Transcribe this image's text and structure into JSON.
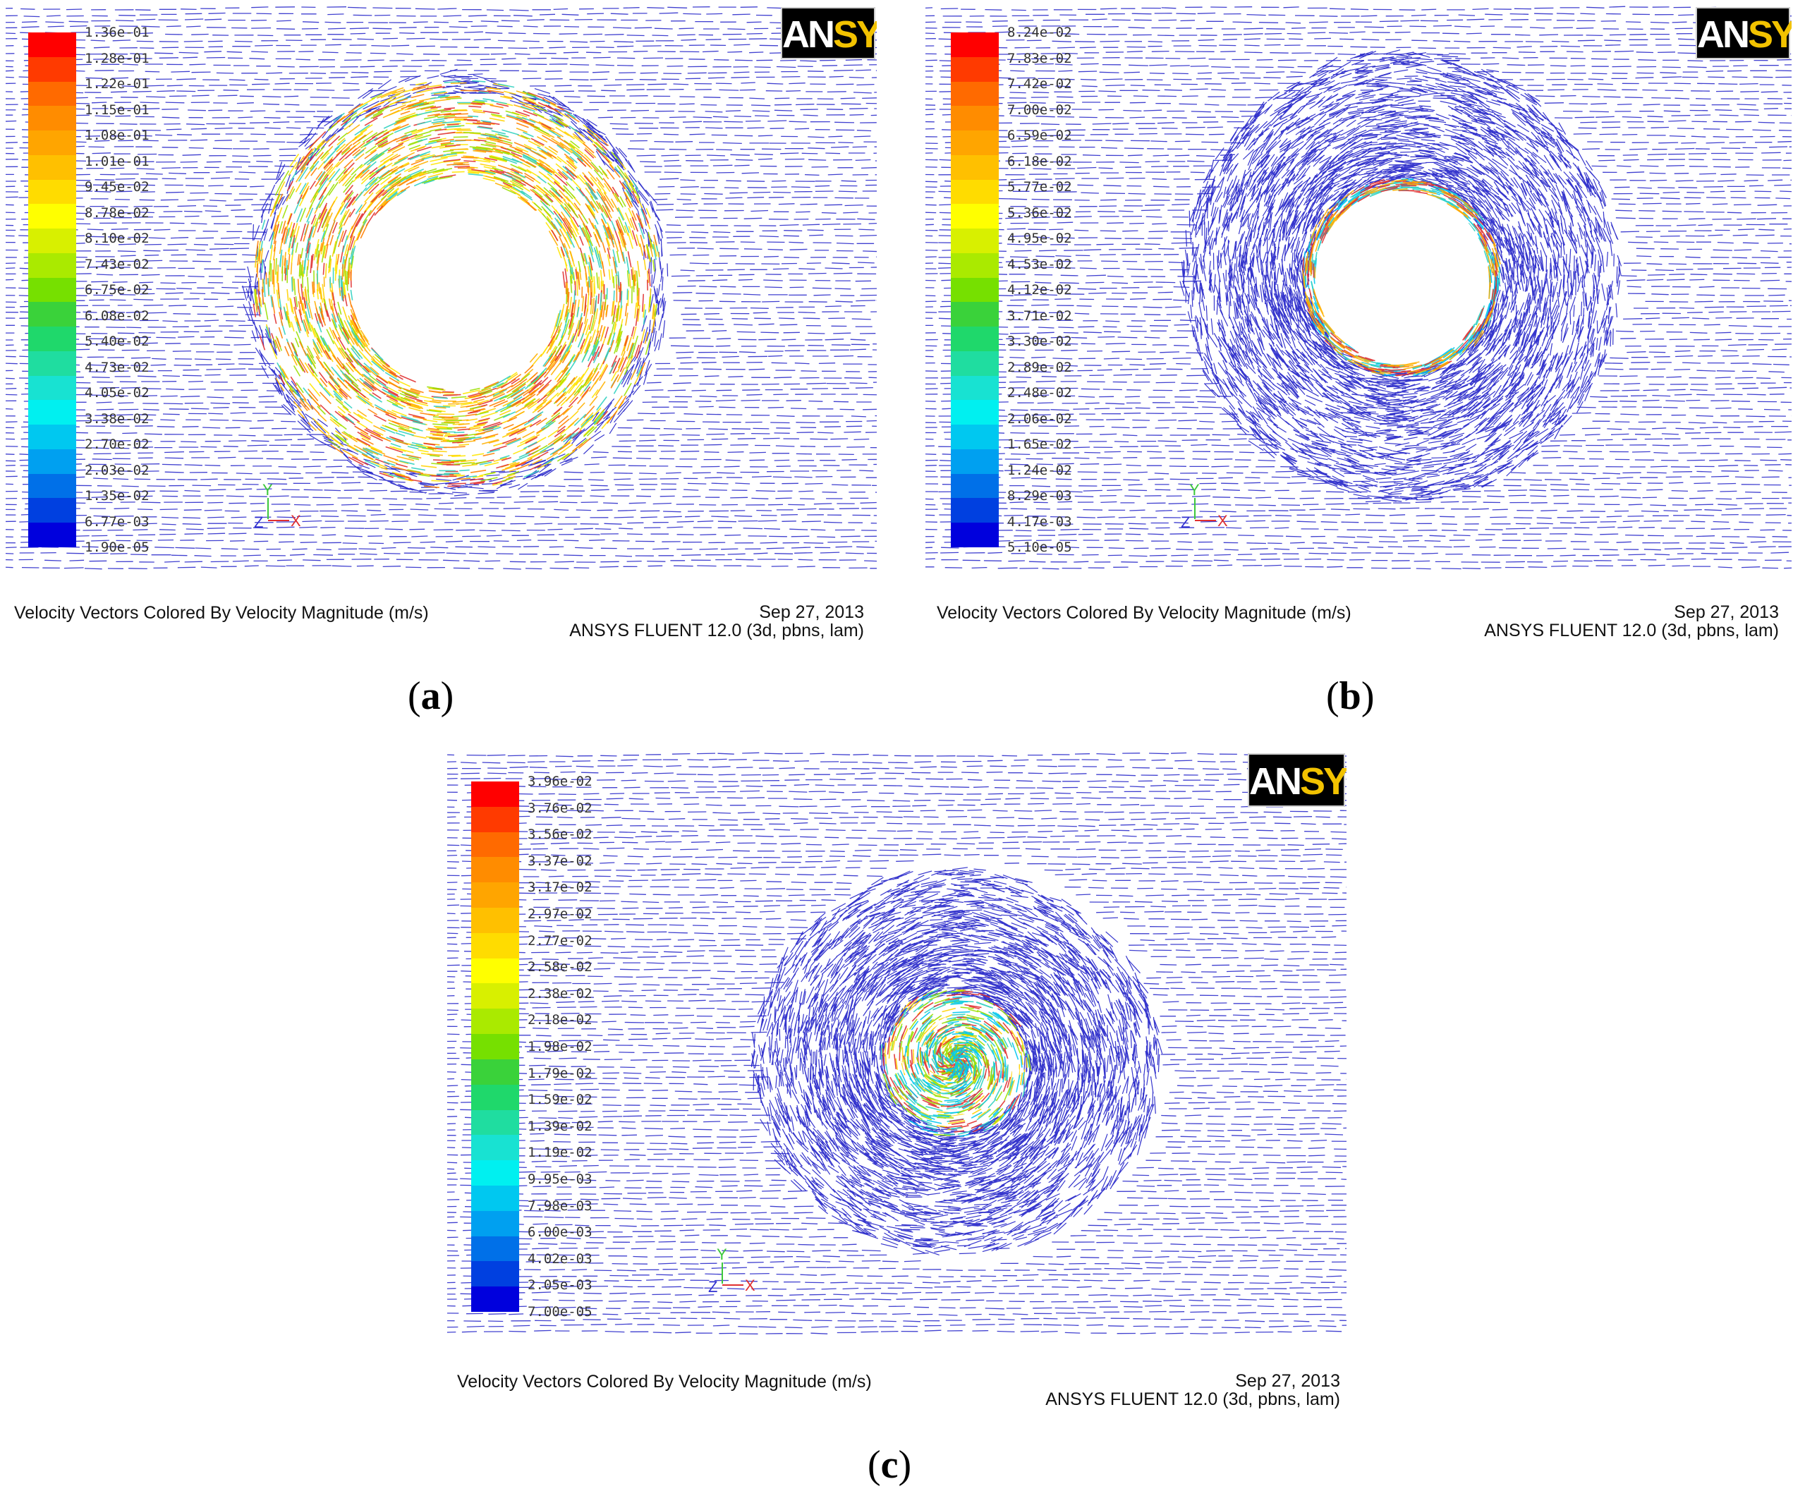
{
  "figure": {
    "panels": [
      {
        "id": "a",
        "caption_open": "(",
        "caption_letter": "a",
        "caption_close": ")",
        "title": "Velocity Vectors Colored By Velocity Magnitude (m/s)",
        "date": "Sep 27, 2013",
        "solver": "ANSYS FLUENT 12.0 (3d, pbns, lam)",
        "logo_a": "AN",
        "logo_b": "SYS",
        "axis_y": "Y",
        "axis_z": "Z",
        "axis_x": "X",
        "legend_ticks": [
          "1.36e-01",
          "1.28e-01",
          "1.22e-01",
          "1.15e-01",
          "1.08e-01",
          "1.01e-01",
          "9.45e-02",
          "8.78e-02",
          "8.10e-02",
          "7.43e-02",
          "6.75e-02",
          "6.08e-02",
          "5.40e-02",
          "4.73e-02",
          "4.05e-02",
          "3.38e-02",
          "2.70e-02",
          "2.03e-02",
          "1.35e-02",
          "6.77e-03",
          "1.90e-05"
        ]
      },
      {
        "id": "b",
        "caption_open": "(",
        "caption_letter": "b",
        "caption_close": ")",
        "title": "Velocity Vectors Colored By Velocity Magnitude (m/s)",
        "date": "Sep 27, 2013",
        "solver": "ANSYS FLUENT 12.0 (3d, pbns, lam)",
        "logo_a": "AN",
        "logo_b": "SYS",
        "axis_y": "Y",
        "axis_z": "Z",
        "axis_x": "X",
        "legend_ticks": [
          "8.24e-02",
          "7.83e-02",
          "7.42e-02",
          "7.00e-02",
          "6.59e-02",
          "6.18e-02",
          "5.77e-02",
          "5.36e-02",
          "4.95e-02",
          "4.53e-02",
          "4.12e-02",
          "3.71e-02",
          "3.30e-02",
          "2.89e-02",
          "2.48e-02",
          "2.06e-02",
          "1.65e-02",
          "1.24e-02",
          "8.29e-03",
          "4.17e-03",
          "5.10e-05"
        ]
      },
      {
        "id": "c",
        "caption_open": "(",
        "caption_letter": "c",
        "caption_close": ")",
        "title": "Velocity Vectors Colored By Velocity Magnitude (m/s)",
        "date": "Sep 27, 2013",
        "solver": "ANSYS FLUENT 12.0 (3d, pbns, lam)",
        "logo_a": "AN",
        "logo_b": "SYS",
        "axis_y": "Y",
        "axis_z": "Z",
        "axis_x": "X",
        "legend_ticks": [
          "3.96e-02",
          "3.76e-02",
          "3.56e-02",
          "3.37e-02",
          "3.17e-02",
          "2.97e-02",
          "2.77e-02",
          "2.58e-02",
          "2.38e-02",
          "2.18e-02",
          "1.98e-02",
          "1.79e-02",
          "1.59e-02",
          "1.39e-02",
          "1.19e-02",
          "9.95e-03",
          "7.98e-03",
          "6.00e-03",
          "4.02e-03",
          "2.05e-03",
          "7.00e-05"
        ]
      }
    ],
    "colormap": [
      "#ff0000",
      "#ff3a00",
      "#ff6a00",
      "#ff8c00",
      "#ffa500",
      "#ffc000",
      "#ffdc00",
      "#ffff00",
      "#d8f000",
      "#aaea00",
      "#76e000",
      "#3ad23a",
      "#1fd86b",
      "#1fdda0",
      "#18e2d2",
      "#00f0f0",
      "#00c8f0",
      "#00a0f0",
      "#0070e8",
      "#0040e0",
      "#0000dd"
    ],
    "field_color": "#2020c8"
  }
}
